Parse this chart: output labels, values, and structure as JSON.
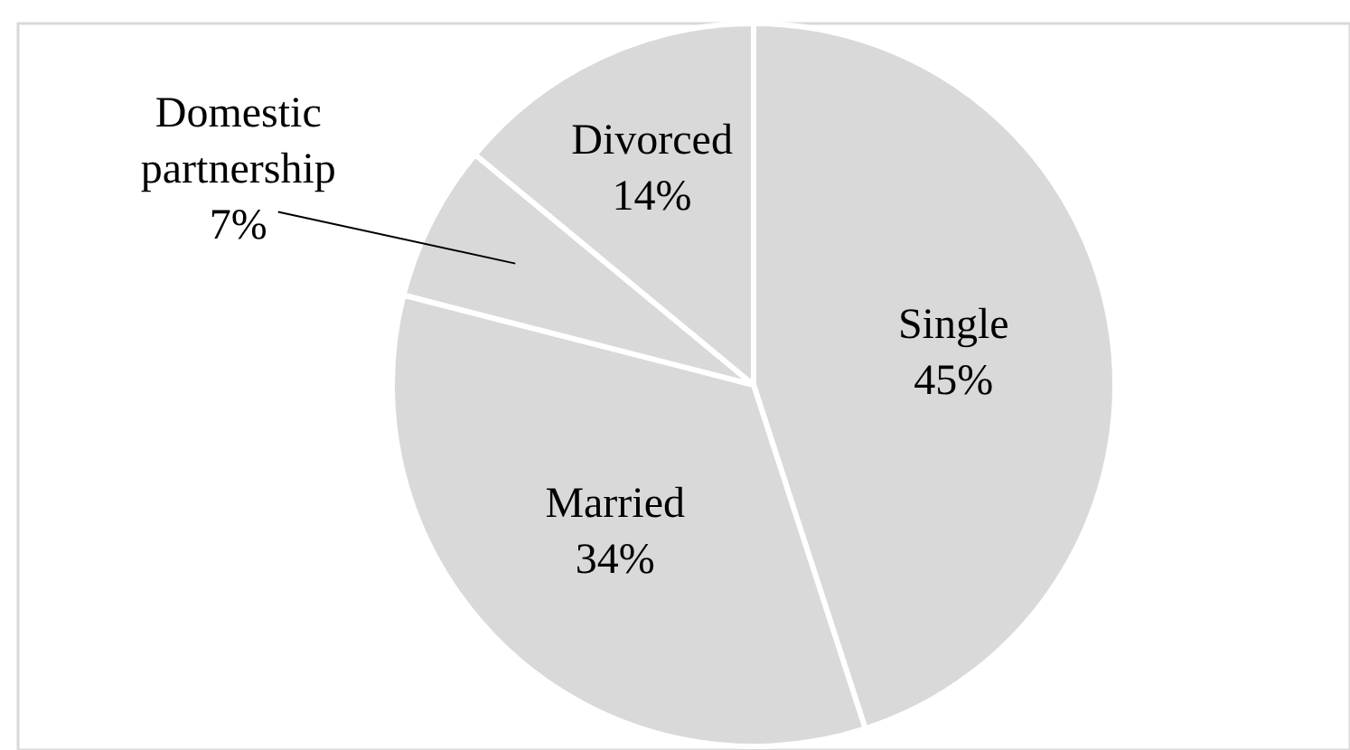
{
  "chart_data": {
    "type": "pie",
    "categories": [
      "Single",
      "Married",
      "Domestic partnership",
      "Divorced"
    ],
    "values": [
      45,
      34,
      7,
      14
    ],
    "colors": [
      "#d9d9d9",
      "#d9d9d9",
      "#d9d9d9",
      "#d9d9d9"
    ],
    "value_labels": [
      "45%",
      "34%",
      "7%",
      "14%"
    ]
  }
}
